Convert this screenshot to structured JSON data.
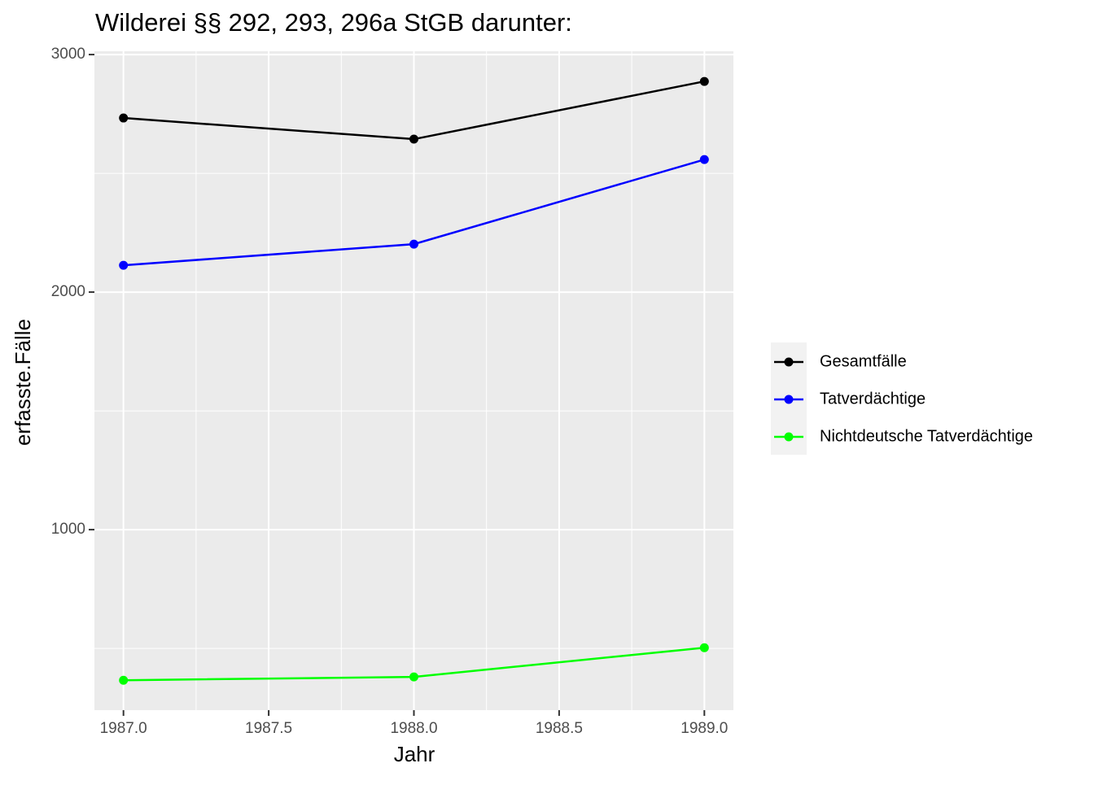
{
  "chart_data": {
    "type": "line",
    "title": "Wilderei §§ 292, 293, 296a StGB darunter:",
    "x_label": "Jahr",
    "y_label": "erfasste.Fälle",
    "x": [
      1987,
      1988,
      1989
    ],
    "series": [
      {
        "name": "Gesamtfälle",
        "color": "#000000",
        "values": [
          2733,
          2644,
          2887
        ]
      },
      {
        "name": "Tatverdächtige",
        "color": "#0000ff",
        "values": [
          2113,
          2202,
          2558
        ]
      },
      {
        "name": "Nichtdeutsche Tatverdächtige",
        "color": "#00ff00",
        "values": [
          366,
          380,
          503
        ]
      }
    ],
    "xlim": [
      1986.9,
      1989.1
    ],
    "xticks": [
      {
        "value": 1987,
        "label": "1987.0"
      },
      {
        "value": 1987.5,
        "label": "1987.5"
      },
      {
        "value": 1988,
        "label": "1988.0"
      },
      {
        "value": 1988.5,
        "label": "1988.5"
      },
      {
        "value": 1989,
        "label": "1989.0"
      }
    ],
    "ylim": [
      240,
      3014
    ],
    "yticks": [
      1000,
      2000,
      3000
    ],
    "grid": true,
    "legend": "right"
  }
}
